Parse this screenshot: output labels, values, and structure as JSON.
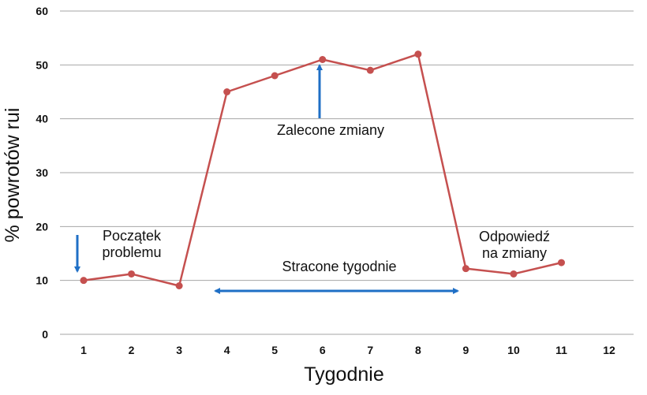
{
  "chart_data": {
    "type": "line",
    "xlabel": "Tygodnie",
    "ylabel": "% powrotów rui",
    "ylim": [
      0,
      60
    ],
    "yticks": [
      0,
      10,
      20,
      30,
      40,
      50,
      60
    ],
    "categories": [
      "1",
      "2",
      "3",
      "4",
      "5",
      "6",
      "7",
      "8",
      "9",
      "10",
      "11",
      "12"
    ],
    "values": [
      10,
      11.2,
      9,
      45,
      48,
      51,
      49,
      52,
      12.2,
      11.2,
      13.3,
      null
    ],
    "grid": true,
    "line_color": "#c5504f",
    "annotation_color": "#1f6fc6",
    "annotations": {
      "start": [
        "Początek",
        "problemu"
      ],
      "recommended": "Zalecone zmiany",
      "lost": "Stracone tygodnie",
      "response": [
        "Odpowiedź",
        "na zmiany"
      ]
    }
  }
}
